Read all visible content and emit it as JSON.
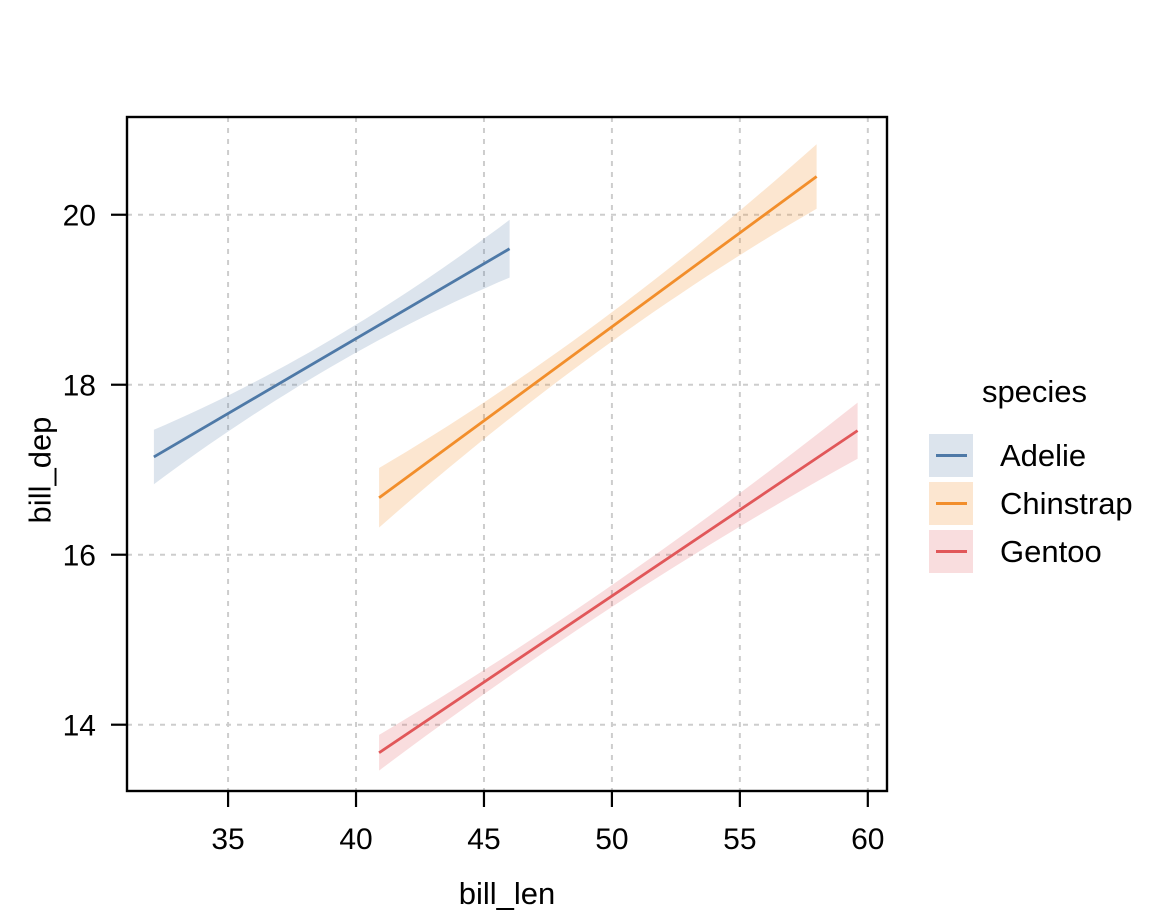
{
  "figure": {
    "background_color": "#ffffff",
    "title": ""
  },
  "chart_data": {
    "type": "line",
    "subtype": "linear-regression-with-confidence-bands",
    "title": "",
    "xlabel": "bill_len",
    "ylabel": "bill_dep",
    "xlim": [
      31.05,
      60.75
    ],
    "ylim": [
      13.22,
      21.15
    ],
    "x_ticks": [
      35,
      40,
      45,
      50,
      55,
      60
    ],
    "y_ticks": [
      14,
      16,
      18,
      20
    ],
    "grid": {
      "visible": true,
      "style": "dashed",
      "color": "#cdcdcd"
    },
    "style": {
      "panel_border_color": "#000000",
      "tick_color": "#000000",
      "tick_label_color": "#000000",
      "axis_title_color": "#000000"
    },
    "legend": {
      "title": "species",
      "position": "right",
      "entries": [
        {
          "label": "Adelie",
          "color": "#4e79a7",
          "fill": "rgba(78,121,167,0.2)"
        },
        {
          "label": "Chinstrap",
          "color": "#f28e2b",
          "fill": "rgba(242,142,43,0.22)"
        },
        {
          "label": "Gentoo",
          "color": "#e15759",
          "fill": "rgba(225,87,89,0.2)"
        }
      ]
    },
    "series": [
      {
        "name": "Adelie",
        "color": "#4e79a7",
        "band_color": "rgba(78,121,167,0.2)",
        "line": {
          "x0": 32.1,
          "y0": 17.15,
          "x1": 46.0,
          "y1": 19.6
        },
        "ci_halfwidth": {
          "left": 0.32,
          "mid": 0.16,
          "right": 0.34
        }
      },
      {
        "name": "Chinstrap",
        "color": "#f28e2b",
        "band_color": "rgba(242,142,43,0.22)",
        "line": {
          "x0": 40.9,
          "y0": 16.67,
          "x1": 58.0,
          "y1": 20.45
        },
        "ci_halfwidth": {
          "left": 0.35,
          "mid": 0.17,
          "right": 0.38
        }
      },
      {
        "name": "Gentoo",
        "color": "#e15759",
        "band_color": "rgba(225,87,89,0.2)",
        "line": {
          "x0": 40.9,
          "y0": 13.67,
          "x1": 59.6,
          "y1": 17.46
        },
        "ci_halfwidth": {
          "left": 0.21,
          "mid": 0.13,
          "right": 0.33
        }
      }
    ]
  }
}
